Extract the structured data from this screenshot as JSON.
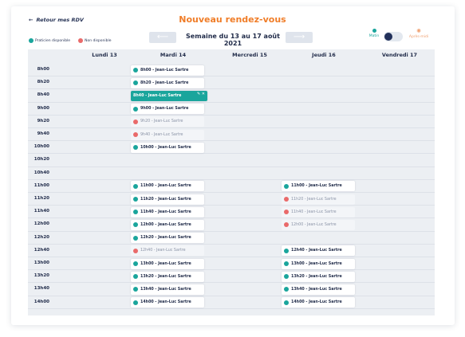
{
  "header": {
    "back_label": "Retour mes RDV",
    "title": "Nouveau rendez-vous",
    "week_label": "Semaine du 13 au 17 août 2021",
    "prev_icon": "arrow-left-icon",
    "next_icon": "arrow-right-icon"
  },
  "legend": {
    "available": "Praticien disponible",
    "unavailable": "Non disponible"
  },
  "toggle": {
    "morning": "Matin",
    "afternoon": "Après-midi",
    "selected": "Matin"
  },
  "colors": {
    "available": "#1aa59c",
    "unavailable": "#e96a6a",
    "accent": "#f07d28",
    "dark": "#22305a"
  },
  "days": [
    "Lundi 13",
    "Mardi 14",
    "Mercredi 15",
    "Jeudi 16",
    "Vendredi 17"
  ],
  "times": [
    "8h00",
    "8h20",
    "8h40",
    "9h00",
    "9h20",
    "9h40",
    "10h00",
    "10h20",
    "10h40",
    "11h00",
    "11h20",
    "11h40",
    "12h00",
    "12h20",
    "12h40",
    "13h00",
    "13h20",
    "13h40",
    "14h00"
  ],
  "slots": [
    {
      "day": 1,
      "row": 0,
      "label": "8h00 - Jean-Luc Sartre",
      "status": "available"
    },
    {
      "day": 1,
      "row": 1,
      "label": "8h20 - Jean-Luc Sartre",
      "status": "available"
    },
    {
      "day": 1,
      "row": 2,
      "label": "8h40 - Jean-Luc Sartre",
      "status": "selected"
    },
    {
      "day": 1,
      "row": 3,
      "label": "9h00 - Jean-Luc Sartre",
      "status": "available"
    },
    {
      "day": 1,
      "row": 4,
      "label": "9h20 - Jean-Luc Sartre",
      "status": "unavailable"
    },
    {
      "day": 1,
      "row": 5,
      "label": "9h40 - Jean-Luc Sartre",
      "status": "unavailable"
    },
    {
      "day": 1,
      "row": 6,
      "label": "10h00 - Jean-Luc Sartre",
      "status": "available"
    },
    {
      "day": 1,
      "row": 9,
      "label": "11h00 - Jean-Luc Sartre",
      "status": "available"
    },
    {
      "day": 1,
      "row": 10,
      "label": "11h20 - Jean-Luc Sartre",
      "status": "available"
    },
    {
      "day": 1,
      "row": 11,
      "label": "11h40 - Jean-Luc Sartre",
      "status": "available"
    },
    {
      "day": 1,
      "row": 12,
      "label": "12h00 - Jean-Luc Sartre",
      "status": "available"
    },
    {
      "day": 1,
      "row": 13,
      "label": "12h20 - Jean-Luc Sartre",
      "status": "available"
    },
    {
      "day": 1,
      "row": 14,
      "label": "12h40 - Jean-Luc Sartre",
      "status": "unavailable"
    },
    {
      "day": 1,
      "row": 15,
      "label": "13h00 - Jean-Luc Sartre",
      "status": "available"
    },
    {
      "day": 1,
      "row": 16,
      "label": "13h20 - Jean-Luc Sartre",
      "status": "available"
    },
    {
      "day": 1,
      "row": 17,
      "label": "13h40 - Jean-Luc Sartre",
      "status": "available"
    },
    {
      "day": 1,
      "row": 18,
      "label": "14h00 - Jean-Luc Sartre",
      "status": "available"
    },
    {
      "day": 3,
      "row": 9,
      "label": "11h00 - Jean-Luc Sartre",
      "status": "available"
    },
    {
      "day": 3,
      "row": 10,
      "label": "11h20 - Jean-Luc Sartre",
      "status": "unavailable"
    },
    {
      "day": 3,
      "row": 11,
      "label": "11h40 - Jean-Luc Sartre",
      "status": "unavailable"
    },
    {
      "day": 3,
      "row": 12,
      "label": "12h00 - Jean-Luc Sartre",
      "status": "unavailable"
    },
    {
      "day": 3,
      "row": 14,
      "label": "12h40 - Jean-Luc Sartre",
      "status": "available"
    },
    {
      "day": 3,
      "row": 15,
      "label": "13h00 - Jean-Luc Sartre",
      "status": "available"
    },
    {
      "day": 3,
      "row": 16,
      "label": "13h20 - Jean-Luc Sartre",
      "status": "available"
    },
    {
      "day": 3,
      "row": 17,
      "label": "13h40 - Jean-Luc Sartre",
      "status": "available"
    },
    {
      "day": 3,
      "row": 18,
      "label": "14h00 - Jean-Luc Sartre",
      "status": "available"
    }
  ]
}
